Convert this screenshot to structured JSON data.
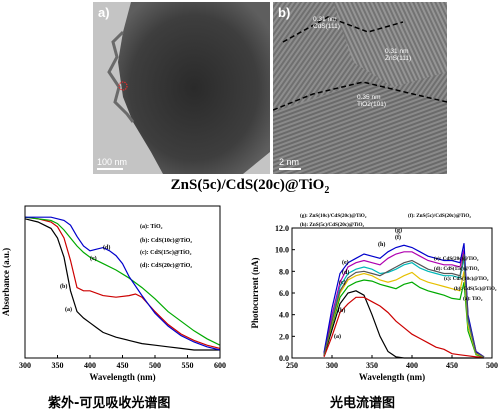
{
  "figure": {
    "main_caption": {
      "prefix": "ZnS(5c)/CdS(20c)@TiO",
      "subscript": "2"
    },
    "panel_a": {
      "tag": "a)",
      "scale_bar": "100 nm"
    },
    "panel_b": {
      "tag": "b)",
      "scale_bar": "2 nm",
      "lattice_labels": [
        {
          "spacing": "0.31 nm",
          "phase": "CdS(111)"
        },
        {
          "spacing": "0.31 nm",
          "phase": "ZnS(111)"
        },
        {
          "spacing": "0.35 nm",
          "phase": "TiO2(101)"
        }
      ]
    },
    "caption_uv": "紫外-可见吸收光谱图",
    "caption_pc": "光电流谱图"
  },
  "chart_data": [
    {
      "type": "line",
      "xlabel": "Wavelength (nm)",
      "ylabel": "Absorbance (a.u.)",
      "xlim": [
        300,
        600
      ],
      "xticks": [
        "300",
        "350",
        "400",
        "450",
        "500",
        "550",
        "600"
      ],
      "grid": false,
      "legend": "top-right",
      "colors": [
        "#000000",
        "#cc0000",
        "#00aa00",
        "#0000cc"
      ],
      "series": [
        {
          "name": "(a): TiO₂",
          "tag": "(a)",
          "x": [
            300,
            320,
            340,
            350,
            360,
            370,
            380,
            390,
            400,
            410,
            420,
            440,
            460,
            480,
            500,
            520,
            540,
            560,
            580,
            600
          ],
          "y": [
            0.92,
            0.9,
            0.86,
            0.8,
            0.68,
            0.47,
            0.34,
            0.3,
            0.27,
            0.24,
            0.21,
            0.18,
            0.16,
            0.14,
            0.13,
            0.12,
            0.11,
            0.1,
            0.1,
            0.1
          ]
        },
        {
          "name": "(b): CdS(10c)@TiO₂",
          "tag": "(b)",
          "x": [
            300,
            320,
            340,
            350,
            360,
            370,
            380,
            390,
            400,
            420,
            440,
            460,
            470,
            480,
            500,
            520,
            540,
            560,
            580,
            600
          ],
          "y": [
            0.93,
            0.92,
            0.9,
            0.87,
            0.8,
            0.66,
            0.49,
            0.47,
            0.47,
            0.44,
            0.43,
            0.44,
            0.45,
            0.43,
            0.34,
            0.26,
            0.2,
            0.16,
            0.13,
            0.11
          ]
        },
        {
          "name": "(c): CdS(15c)@TiO₂",
          "tag": "(c)",
          "x": [
            300,
            320,
            340,
            350,
            360,
            370,
            380,
            390,
            400,
            420,
            440,
            460,
            480,
            500,
            520,
            540,
            560,
            580,
            600
          ],
          "y": [
            0.93,
            0.92,
            0.91,
            0.89,
            0.85,
            0.8,
            0.75,
            0.71,
            0.68,
            0.64,
            0.6,
            0.55,
            0.49,
            0.42,
            0.34,
            0.28,
            0.22,
            0.17,
            0.13
          ]
        },
        {
          "name": "(d): CdS(20c)@TiO₂",
          "tag": "(d)",
          "x": [
            300,
            320,
            340,
            350,
            360,
            370,
            380,
            390,
            400,
            410,
            420,
            430,
            440,
            450,
            460,
            480,
            500,
            520,
            540,
            560,
            580,
            600
          ],
          "y": [
            0.93,
            0.93,
            0.93,
            0.92,
            0.91,
            0.88,
            0.81,
            0.75,
            0.72,
            0.73,
            0.74,
            0.72,
            0.69,
            0.64,
            0.56,
            0.44,
            0.33,
            0.25,
            0.19,
            0.15,
            0.12,
            0.1
          ]
        }
      ]
    },
    {
      "type": "line",
      "xlabel": "Wavelength (nm)",
      "ylabel": "Photocurrent (nA)",
      "xlim": [
        250,
        500
      ],
      "ylim": [
        0,
        12.0
      ],
      "xticks": [
        "250",
        "300",
        "350",
        "400",
        "450",
        "500"
      ],
      "yticks": [
        "0.0",
        "2.0",
        "4.0",
        "6.0",
        "8.0",
        "10.0",
        "12.0"
      ],
      "grid": false,
      "legend": "top",
      "colors": [
        "#000000",
        "#cc0000",
        "#00aa00",
        "#e6c000",
        "#00b8b8",
        "#b000b0",
        "#0000cc",
        "#555555"
      ],
      "series": [
        {
          "name": "(a): TiO₂",
          "tag": "(a)",
          "x": [
            290,
            300,
            310,
            320,
            330,
            340,
            350,
            360,
            370,
            380,
            390,
            400,
            420,
            450,
            480,
            490
          ],
          "y": [
            0.2,
            2.6,
            5.0,
            6.0,
            6.2,
            5.8,
            4.0,
            2.0,
            0.6,
            0.1,
            0,
            0,
            0,
            0,
            0,
            0
          ]
        },
        {
          "name": "(b): CdS(5c)@TiO₂",
          "tag": "(b)",
          "x": [
            290,
            300,
            310,
            320,
            330,
            340,
            350,
            360,
            370,
            380,
            390,
            400,
            410,
            420,
            430,
            440,
            450,
            460,
            470,
            480,
            490
          ],
          "y": [
            0.1,
            2.0,
            4.2,
            5.0,
            5.6,
            5.6,
            5.2,
            4.8,
            4.2,
            3.4,
            2.8,
            2.2,
            1.8,
            1.4,
            1.0,
            0.8,
            0.4,
            0.3,
            0.2,
            0.1,
            0.1
          ]
        },
        {
          "name": "(c): CdS(10c)@TiO₂",
          "tag": "(c)",
          "x": [
            290,
            300,
            310,
            320,
            330,
            340,
            350,
            360,
            370,
            380,
            390,
            400,
            410,
            420,
            430,
            440,
            450,
            460,
            465,
            470,
            480,
            490
          ],
          "y": [
            0.3,
            3.0,
            5.6,
            6.6,
            7.0,
            7.2,
            7.1,
            6.8,
            6.6,
            6.4,
            6.8,
            7.0,
            6.5,
            6.2,
            6.0,
            5.8,
            5.5,
            5.4,
            7.0,
            2.5,
            0.3,
            0.1
          ]
        },
        {
          "name": "(d): CdS(15c)@TiO₂",
          "tag": "(d)",
          "x": [
            290,
            300,
            310,
            320,
            330,
            340,
            350,
            360,
            370,
            380,
            390,
            400,
            410,
            420,
            430,
            440,
            450,
            460,
            465,
            470,
            480,
            490
          ],
          "y": [
            0.3,
            3.2,
            6.0,
            7.2,
            7.6,
            7.8,
            7.6,
            7.2,
            7.0,
            7.2,
            7.6,
            7.9,
            7.3,
            7.0,
            6.8,
            6.6,
            6.4,
            6.2,
            8.0,
            3.0,
            0.4,
            0.1
          ]
        },
        {
          "name": "(e): CdS(20c)@TiO₂",
          "tag": "(e)",
          "x": [
            290,
            300,
            310,
            320,
            330,
            340,
            350,
            360,
            370,
            380,
            390,
            400,
            410,
            420,
            430,
            440,
            450,
            460,
            465,
            470,
            480,
            490
          ],
          "y": [
            0.4,
            3.6,
            6.6,
            7.8,
            8.2,
            8.4,
            8.2,
            7.8,
            7.9,
            8.2,
            8.6,
            8.8,
            8.3,
            8.0,
            7.8,
            7.6,
            7.6,
            7.4,
            9.2,
            3.4,
            0.5,
            0.1
          ]
        },
        {
          "name": "(f): ZnS(5c)/CdS(20c)@TiO₂",
          "tag": "(f)",
          "x": [
            290,
            300,
            310,
            320,
            330,
            340,
            350,
            360,
            370,
            380,
            390,
            400,
            410,
            420,
            430,
            440,
            450,
            460,
            465,
            470,
            480,
            490
          ],
          "y": [
            0.4,
            4.0,
            7.0,
            8.4,
            8.8,
            9.0,
            8.8,
            8.6,
            9.2,
            9.6,
            9.8,
            9.8,
            9.4,
            9.0,
            8.8,
            8.6,
            8.6,
            8.4,
            10.0,
            3.8,
            0.6,
            0.1
          ]
        },
        {
          "name": "(g): ZnS(10c)/CdS(20c)@TiO₂",
          "tag": "(g)",
          "x": [
            290,
            300,
            310,
            320,
            330,
            340,
            350,
            360,
            370,
            380,
            390,
            400,
            410,
            420,
            430,
            440,
            450,
            460,
            465,
            470,
            480,
            490
          ],
          "y": [
            0.5,
            4.6,
            7.8,
            8.8,
            9.2,
            9.6,
            9.4,
            9.2,
            9.8,
            10.2,
            10.4,
            10.2,
            9.8,
            9.4,
            9.2,
            9.0,
            9.0,
            8.8,
            10.6,
            4.0,
            0.6,
            0.1
          ]
        },
        {
          "name": "(h): ZnS(5c)/CdS(20c)@TiO₂",
          "tag": "(h)",
          "x": [
            290,
            300,
            310,
            320,
            330,
            340,
            350,
            360,
            370,
            380,
            390,
            400,
            410,
            420,
            430,
            440,
            450,
            460,
            465,
            470,
            480,
            490
          ],
          "y": [
            0.3,
            3.4,
            6.2,
            7.4,
            7.9,
            8.0,
            7.8,
            7.6,
            8.0,
            8.4,
            8.8,
            9.0,
            8.6,
            8.2,
            8.0,
            7.8,
            7.8,
            7.6,
            9.6,
            3.6,
            0.5,
            0.1
          ]
        }
      ]
    }
  ]
}
